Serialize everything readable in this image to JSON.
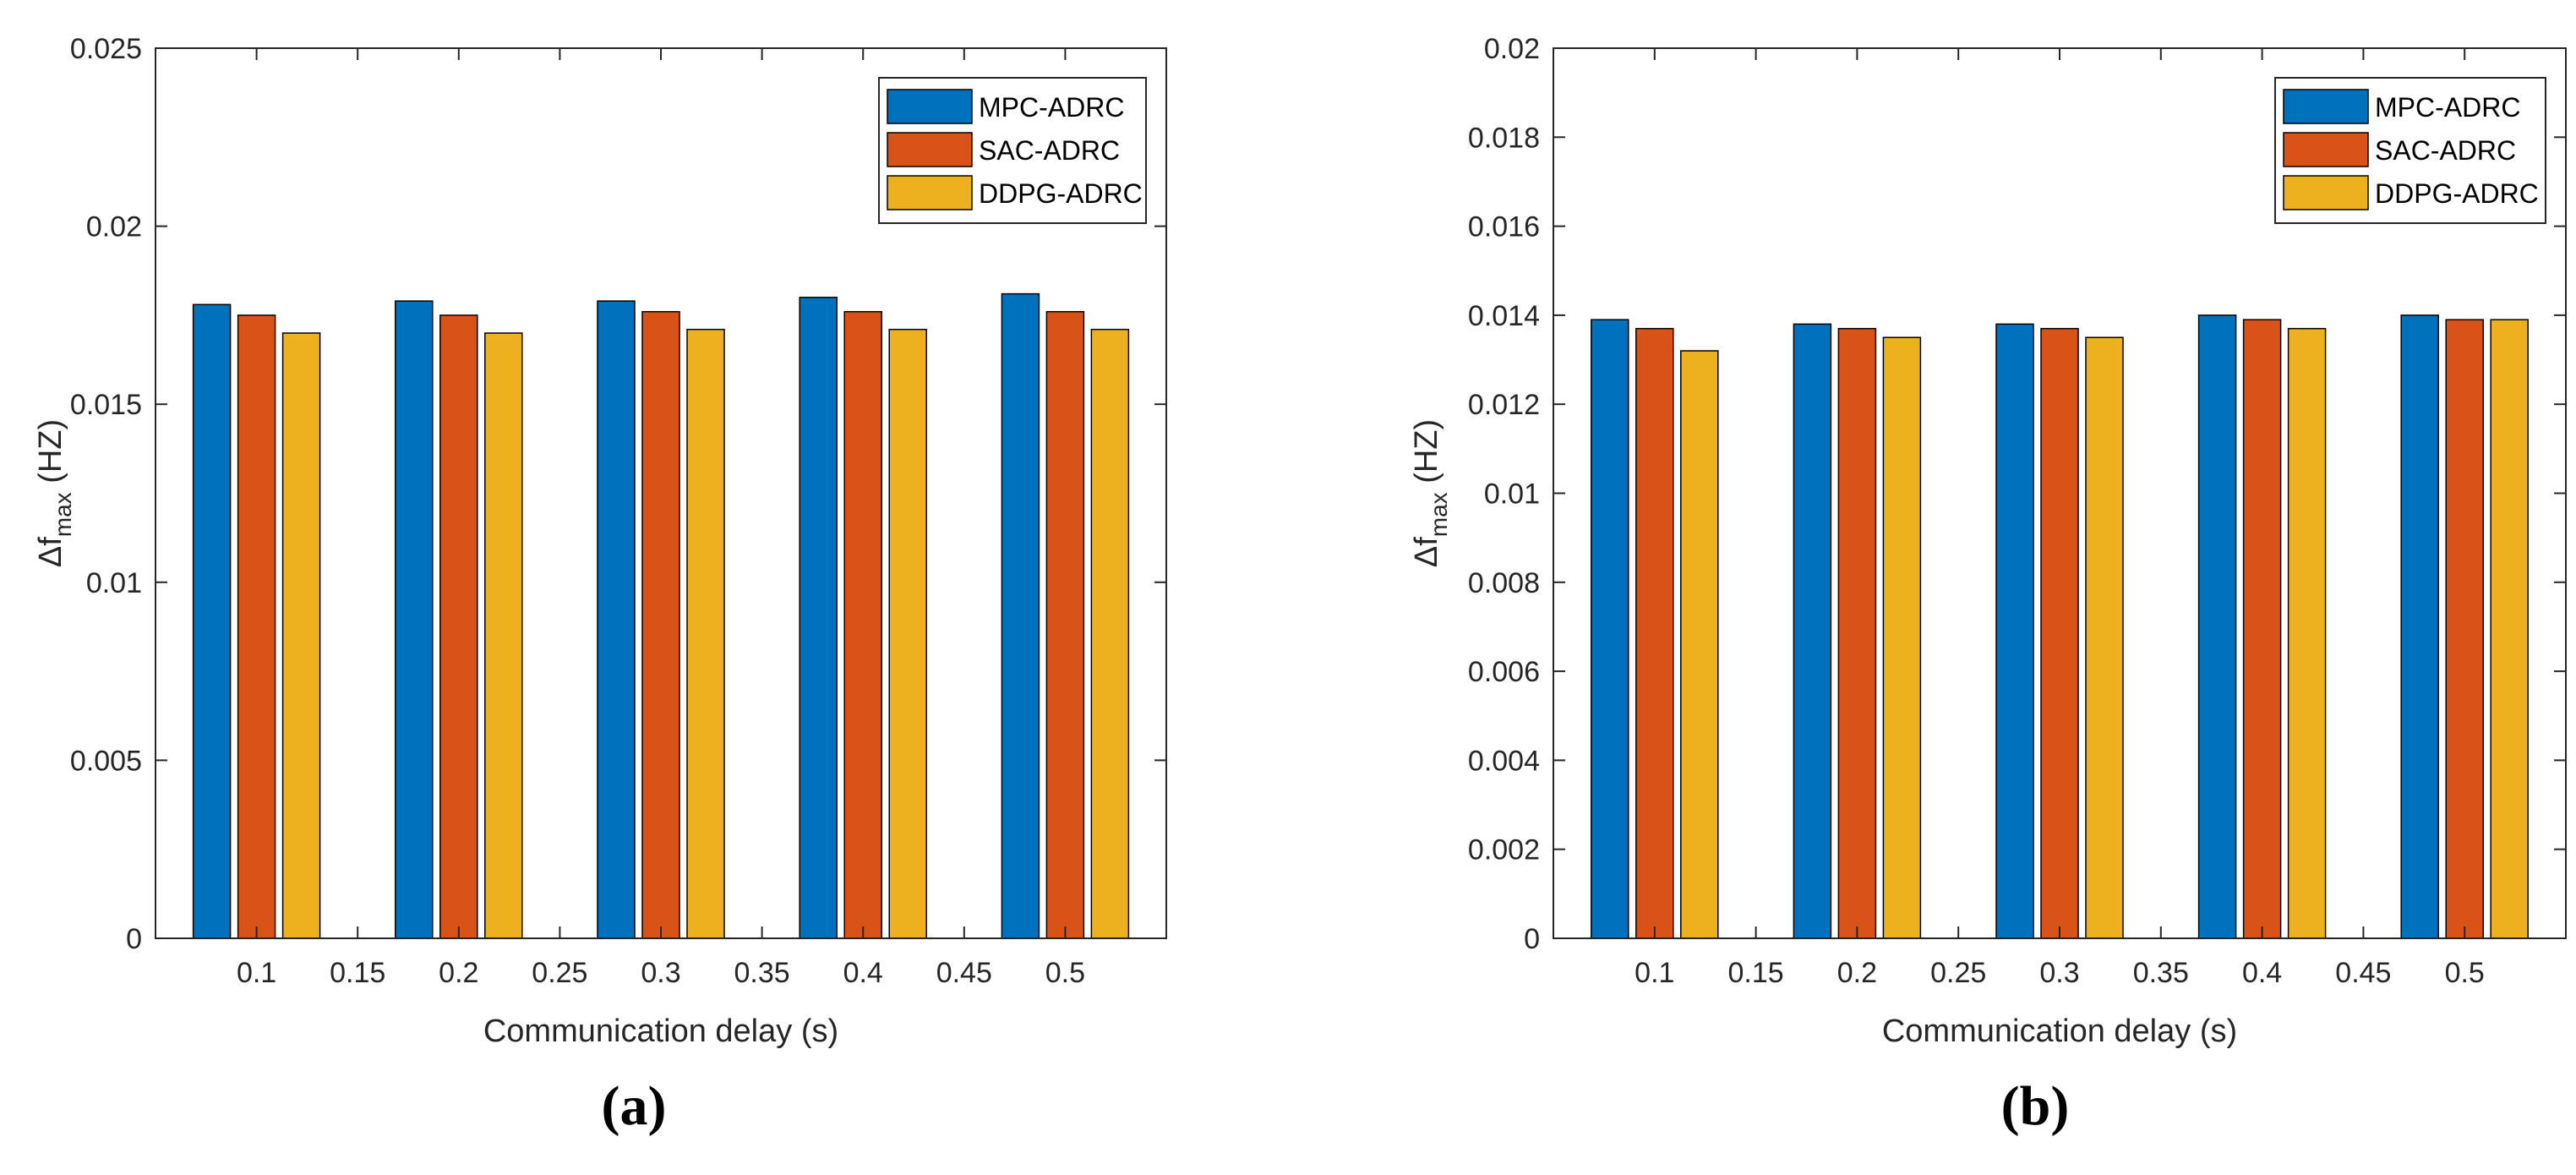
{
  "chart_data": [
    {
      "type": "bar",
      "panel_label": "(a)",
      "title": "",
      "xlabel": "Communication delay (s)",
      "ylabel_main": "Δf",
      "ylabel_sub": "max",
      "ylabel_unit": " (HZ)",
      "xlim": [
        0.05,
        0.55
      ],
      "ylim": [
        0,
        0.025
      ],
      "xticks": [
        0.1,
        0.15,
        0.2,
        0.25,
        0.3,
        0.35,
        0.4,
        0.45,
        0.5
      ],
      "xtick_labels": [
        "0.1",
        "0.15",
        "0.2",
        "0.25",
        "0.3",
        "0.35",
        "0.4",
        "0.45",
        "0.5"
      ],
      "yticks": [
        0,
        0.005,
        0.01,
        0.015,
        0.02,
        0.025
      ],
      "ytick_labels": [
        "0",
        "0.005",
        "0.01",
        "0.015",
        "0.02",
        "0.025"
      ],
      "categories": [
        0.1,
        0.2,
        0.3,
        0.4,
        0.5
      ],
      "legend_position": "top-right",
      "series": [
        {
          "name": "MPC-ADRC",
          "color": "#0072BD",
          "values": [
            0.0178,
            0.0179,
            0.0179,
            0.018,
            0.0181
          ]
        },
        {
          "name": "SAC-ADRC",
          "color": "#D95319",
          "values": [
            0.0175,
            0.0175,
            0.0176,
            0.0176,
            0.0176
          ]
        },
        {
          "name": "DDPG-ADRC",
          "color": "#EDB120",
          "values": [
            0.017,
            0.017,
            0.0171,
            0.0171,
            0.0171
          ]
        }
      ]
    },
    {
      "type": "bar",
      "panel_label": "(b)",
      "title": "",
      "xlabel": "Communication delay (s)",
      "ylabel_main": "Δf",
      "ylabel_sub": "max",
      "ylabel_unit": " (HZ)",
      "xlim": [
        0.05,
        0.55
      ],
      "ylim": [
        0,
        0.02
      ],
      "xticks": [
        0.1,
        0.15,
        0.2,
        0.25,
        0.3,
        0.35,
        0.4,
        0.45,
        0.5
      ],
      "xtick_labels": [
        "0.1",
        "0.15",
        "0.2",
        "0.25",
        "0.3",
        "0.35",
        "0.4",
        "0.45",
        "0.5"
      ],
      "yticks": [
        0,
        0.002,
        0.004,
        0.006,
        0.008,
        0.01,
        0.012,
        0.014,
        0.016,
        0.018,
        0.02
      ],
      "ytick_labels": [
        "0",
        "0.002",
        "0.004",
        "0.006",
        "0.008",
        "0.01",
        "0.012",
        "0.014",
        "0.016",
        "0.018",
        "0.02"
      ],
      "categories": [
        0.1,
        0.2,
        0.3,
        0.4,
        0.5
      ],
      "legend_position": "top-right",
      "series": [
        {
          "name": "MPC-ADRC",
          "color": "#0072BD",
          "values": [
            0.0139,
            0.0138,
            0.0138,
            0.014,
            0.014
          ]
        },
        {
          "name": "SAC-ADRC",
          "color": "#D95319",
          "values": [
            0.0137,
            0.0137,
            0.0137,
            0.0139,
            0.0139
          ]
        },
        {
          "name": "DDPG-ADRC",
          "color": "#EDB120",
          "values": [
            0.0132,
            0.0135,
            0.0135,
            0.0137,
            0.0139
          ]
        }
      ]
    }
  ]
}
